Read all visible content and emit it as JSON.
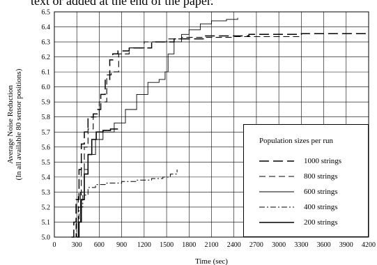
{
  "page": {
    "header_text": "text or added at the end of the paper."
  },
  "chart_data": {
    "type": "line",
    "title": "",
    "xlabel": "Time (sec)",
    "ylabel_line1": "Average Noise Reduction",
    "ylabel_line2": "(In all available 80 sensor positions)",
    "xlim": [
      0,
      4200
    ],
    "ylim": [
      5.0,
      6.5
    ],
    "x_ticks": [
      0,
      300,
      600,
      900,
      1200,
      1500,
      1800,
      2100,
      2400,
      2700,
      3000,
      3300,
      3600,
      3900,
      4200
    ],
    "y_ticks": [
      5.0,
      5.1,
      5.2,
      5.3,
      5.4,
      5.5,
      5.6,
      5.7,
      5.8,
      5.9,
      6.0,
      6.1,
      6.2,
      6.3,
      6.4,
      6.5
    ],
    "grid": true,
    "legend": {
      "title": "Population sizes per run",
      "placement": "bottom-right"
    },
    "series": [
      {
        "name": "1000 strings",
        "dash": "long",
        "points": [
          [
            230,
            5.0
          ],
          [
            260,
            5.1
          ],
          [
            290,
            5.25
          ],
          [
            330,
            5.45
          ],
          [
            360,
            5.62
          ],
          [
            400,
            5.7
          ],
          [
            450,
            5.8
          ],
          [
            520,
            5.82
          ],
          [
            580,
            5.85
          ],
          [
            620,
            5.95
          ],
          [
            680,
            6.05
          ],
          [
            740,
            6.18
          ],
          [
            780,
            6.22
          ],
          [
            850,
            6.24
          ],
          [
            1000,
            6.26
          ],
          [
            1300,
            6.3
          ],
          [
            1600,
            6.32
          ],
          [
            2000,
            6.34
          ],
          [
            2600,
            6.35
          ],
          [
            3300,
            6.355
          ],
          [
            4200,
            6.36
          ]
        ]
      },
      {
        "name": "800 strings",
        "dash": "medium",
        "points": [
          [
            260,
            5.0
          ],
          [
            290,
            5.1
          ],
          [
            320,
            5.28
          ],
          [
            360,
            5.45
          ],
          [
            400,
            5.6
          ],
          [
            450,
            5.72
          ],
          [
            520,
            5.8
          ],
          [
            600,
            5.9
          ],
          [
            700,
            6.08
          ],
          [
            760,
            6.1
          ],
          [
            860,
            6.22
          ],
          [
            1000,
            6.26
          ],
          [
            1200,
            6.3
          ],
          [
            1500,
            6.32
          ],
          [
            1700,
            6.33
          ],
          [
            2000,
            6.33
          ],
          [
            2400,
            6.335
          ],
          [
            3300,
            6.34
          ]
        ]
      },
      {
        "name": "600 strings",
        "dash": "solid",
        "points": [
          [
            290,
            5.0
          ],
          [
            320,
            5.1
          ],
          [
            350,
            5.3
          ],
          [
            400,
            5.45
          ],
          [
            450,
            5.55
          ],
          [
            550,
            5.65
          ],
          [
            650,
            5.7
          ],
          [
            800,
            5.76
          ],
          [
            950,
            5.85
          ],
          [
            1100,
            5.95
          ],
          [
            1250,
            6.03
          ],
          [
            1400,
            6.05
          ],
          [
            1480,
            6.1
          ],
          [
            1520,
            6.22
          ],
          [
            1600,
            6.3
          ],
          [
            1700,
            6.35
          ],
          [
            1800,
            6.38
          ],
          [
            1950,
            6.42
          ],
          [
            2100,
            6.44
          ],
          [
            2300,
            6.45
          ],
          [
            2450,
            6.46
          ]
        ]
      },
      {
        "name": "400 strings",
        "dash": "dashdot",
        "points": [
          [
            270,
            5.0
          ],
          [
            300,
            5.1
          ],
          [
            330,
            5.2
          ],
          [
            380,
            5.28
          ],
          [
            450,
            5.33
          ],
          [
            550,
            5.35
          ],
          [
            700,
            5.36
          ],
          [
            900,
            5.37
          ],
          [
            1100,
            5.38
          ],
          [
            1300,
            5.39
          ],
          [
            1450,
            5.4
          ],
          [
            1550,
            5.42
          ],
          [
            1640,
            5.45
          ]
        ]
      },
      {
        "name": "200 strings",
        "dash": "solid-bold",
        "points": [
          [
            300,
            5.0
          ],
          [
            330,
            5.1
          ],
          [
            360,
            5.25
          ],
          [
            400,
            5.42
          ],
          [
            450,
            5.55
          ],
          [
            500,
            5.65
          ],
          [
            560,
            5.7
          ],
          [
            650,
            5.71
          ],
          [
            750,
            5.72
          ],
          [
            850,
            5.72
          ]
        ]
      }
    ]
  }
}
